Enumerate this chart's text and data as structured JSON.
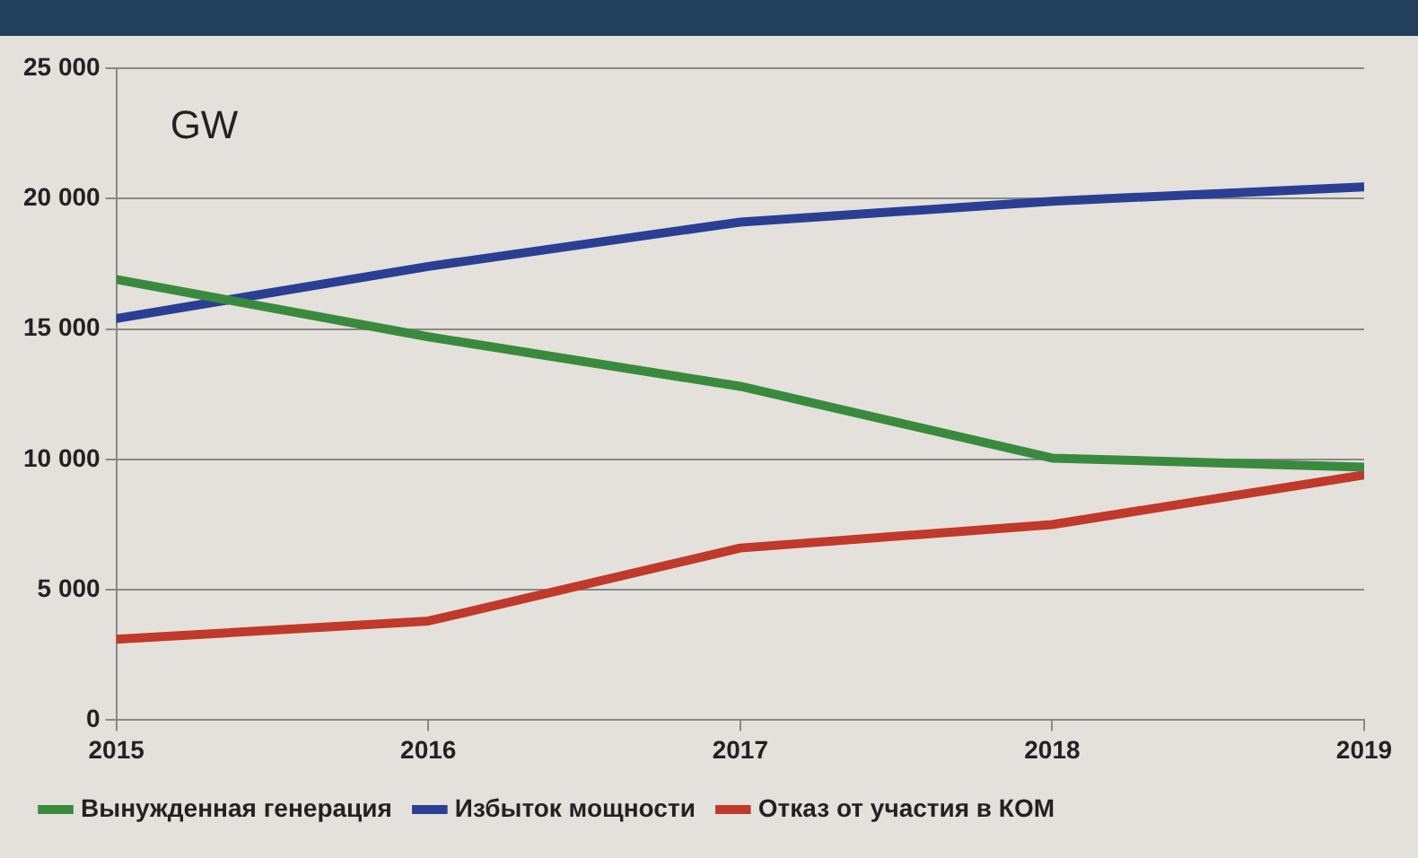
{
  "chart_data": {
    "type": "line",
    "x": [
      2015,
      2016,
      2017,
      2018,
      2019
    ],
    "xlim": [
      2015,
      2019
    ],
    "xticks": [
      2015,
      2016,
      2017,
      2018,
      2019
    ],
    "ylim": [
      0,
      25000
    ],
    "yticks": [
      {
        "value": 0,
        "label": "0"
      },
      {
        "value": 5000,
        "label": "5 000"
      },
      {
        "value": 10000,
        "label": "10 000"
      },
      {
        "value": 15000,
        "label": "15 000"
      },
      {
        "value": 20000,
        "label": "20 000"
      },
      {
        "value": 25000,
        "label": "25 000"
      }
    ],
    "grid": "y",
    "legend": "bottom",
    "line_style": "solid",
    "annotations": [
      "GW"
    ],
    "series": [
      {
        "name": "Вынужденная генерация",
        "color": "#3a8a3e",
        "values": [
          16900,
          14700,
          12800,
          10050,
          9700
        ]
      },
      {
        "name": "Избыток мощности",
        "color": "#2a3f94",
        "values": [
          15400,
          17400,
          19100,
          19900,
          20450
        ]
      },
      {
        "name": "Отказ от участия в КОМ",
        "color": "#c0392b",
        "values": [
          3100,
          3800,
          6600,
          7500,
          9400
        ]
      }
    ]
  }
}
